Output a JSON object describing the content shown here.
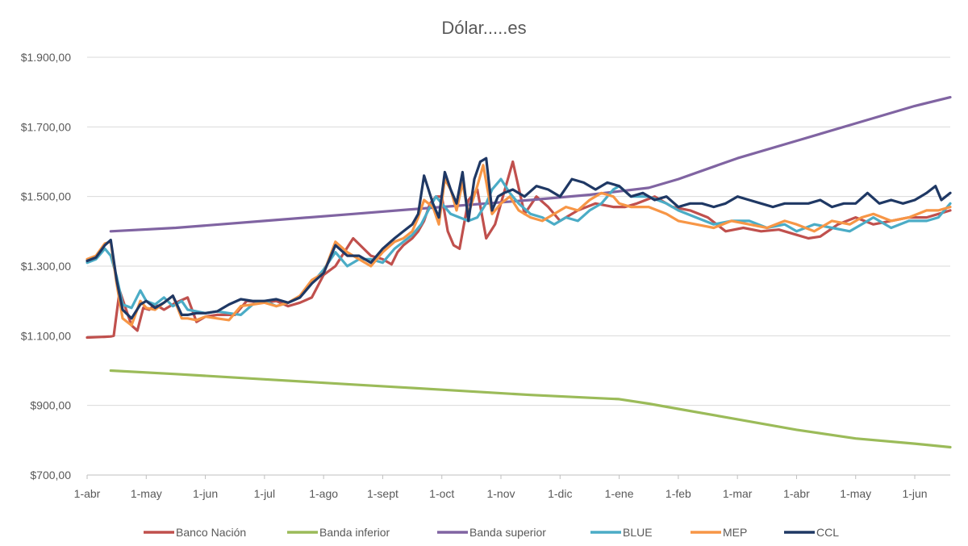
{
  "chart_data": {
    "type": "line",
    "title": "Dólar.....es",
    "xlabel": "",
    "ylabel": "",
    "x_ticks": [
      "1-abr",
      "1-may",
      "1-jun",
      "1-jul",
      "1-ago",
      "1-sept",
      "1-oct",
      "1-nov",
      "1-dic",
      "1-ene",
      "1-feb",
      "1-mar",
      "1-abr",
      "1-may",
      "1-jun"
    ],
    "x_range": [
      0,
      14.6
    ],
    "y_ticks": [
      "$700,00",
      "$900,00",
      "$1.100,00",
      "$1.300,00",
      "$1.500,00",
      "$1.700,00",
      "$1.900,00"
    ],
    "y_tick_values": [
      700,
      900,
      1100,
      1300,
      1500,
      1700,
      1900
    ],
    "ylim": [
      700,
      1900
    ],
    "grid": "horizontal",
    "legend_position": "bottom",
    "series": [
      {
        "name": "Banco Nación",
        "color": "#C0504D",
        "x": [
          0,
          0.3,
          0.4,
          0.45,
          0.55,
          0.65,
          0.75,
          0.85,
          0.95,
          1.05,
          1.15,
          1.3,
          1.5,
          1.7,
          1.85,
          2.0,
          2.2,
          2.5,
          2.7,
          3.0,
          3.2,
          3.4,
          3.6,
          3.8,
          4.0,
          4.2,
          4.5,
          4.8,
          5.0,
          5.15,
          5.25,
          5.35,
          5.5,
          5.6,
          5.7,
          5.8,
          5.9,
          6.0,
          6.1,
          6.2,
          6.3,
          6.45,
          6.6,
          6.75,
          6.9,
          7.0,
          7.2,
          7.4,
          7.6,
          7.8,
          8.0,
          8.3,
          8.6,
          8.9,
          9.1,
          9.3,
          9.6,
          9.9,
          10.2,
          10.5,
          10.8,
          11.1,
          11.4,
          11.7,
          12.0,
          12.2,
          12.4,
          12.7,
          13.0,
          13.3,
          13.6,
          13.9,
          14.2,
          14.4,
          14.6
        ],
        "y": [
          1095,
          1097,
          1098,
          1100,
          1230,
          1180,
          1130,
          1115,
          1180,
          1175,
          1190,
          1175,
          1195,
          1210,
          1140,
          1155,
          1160,
          1160,
          1200,
          1195,
          1200,
          1185,
          1195,
          1210,
          1275,
          1300,
          1380,
          1330,
          1320,
          1305,
          1340,
          1360,
          1380,
          1400,
          1430,
          1480,
          1500,
          1500,
          1400,
          1360,
          1350,
          1490,
          1520,
          1380,
          1420,
          1480,
          1600,
          1450,
          1500,
          1470,
          1430,
          1460,
          1480,
          1470,
          1470,
          1480,
          1500,
          1470,
          1460,
          1440,
          1400,
          1410,
          1400,
          1405,
          1390,
          1380,
          1385,
          1420,
          1440,
          1420,
          1430,
          1440,
          1440,
          1450,
          1460
        ]
      },
      {
        "name": "Banda inferior",
        "color": "#9BBB59",
        "x": [
          0.4,
          1.5,
          3.0,
          4.5,
          6.0,
          7.5,
          8.5,
          9.0,
          9.5,
          10.0,
          11.0,
          12.0,
          13.0,
          14.0,
          14.6
        ],
        "y": [
          1000,
          990,
          975,
          960,
          945,
          930,
          922,
          918,
          905,
          890,
          860,
          830,
          805,
          790,
          780
        ]
      },
      {
        "name": "Banda superior",
        "color": "#8064A2",
        "x": [
          0.4,
          1.5,
          3.0,
          4.5,
          6.0,
          7.5,
          8.5,
          9.0,
          9.5,
          10.0,
          11.0,
          12.0,
          13.0,
          14.0,
          14.6
        ],
        "y": [
          1400,
          1410,
          1430,
          1450,
          1470,
          1490,
          1505,
          1515,
          1525,
          1550,
          1610,
          1660,
          1710,
          1760,
          1785
        ]
      },
      {
        "name": "BLUE",
        "color": "#4BACC6",
        "x": [
          0,
          0.15,
          0.3,
          0.4,
          0.5,
          0.6,
          0.75,
          0.9,
          1.0,
          1.15,
          1.3,
          1.45,
          1.6,
          1.7,
          1.85,
          2.0,
          2.2,
          2.4,
          2.6,
          2.8,
          3.0,
          3.2,
          3.4,
          3.6,
          3.8,
          4.0,
          4.2,
          4.4,
          4.6,
          4.8,
          5.0,
          5.2,
          5.35,
          5.5,
          5.65,
          5.8,
          5.9,
          6.0,
          6.15,
          6.3,
          6.45,
          6.6,
          6.75,
          6.85,
          7.0,
          7.15,
          7.3,
          7.5,
          7.7,
          7.9,
          8.1,
          8.3,
          8.5,
          8.7,
          8.9,
          9.0,
          9.2,
          9.5,
          9.8,
          10.0,
          10.3,
          10.6,
          10.9,
          11.2,
          11.5,
          11.8,
          12.0,
          12.3,
          12.6,
          12.9,
          13.1,
          13.3,
          13.6,
          13.9,
          14.2,
          14.4,
          14.6
        ],
        "y": [
          1310,
          1320,
          1350,
          1330,
          1270,
          1190,
          1180,
          1230,
          1200,
          1190,
          1210,
          1185,
          1200,
          1175,
          1170,
          1165,
          1170,
          1165,
          1160,
          1190,
          1200,
          1185,
          1195,
          1210,
          1250,
          1290,
          1340,
          1300,
          1320,
          1320,
          1310,
          1350,
          1370,
          1390,
          1420,
          1470,
          1500,
          1480,
          1450,
          1440,
          1430,
          1440,
          1480,
          1520,
          1550,
          1510,
          1480,
          1450,
          1440,
          1420,
          1440,
          1430,
          1460,
          1480,
          1520,
          1530,
          1500,
          1500,
          1480,
          1460,
          1440,
          1420,
          1430,
          1430,
          1410,
          1420,
          1400,
          1420,
          1410,
          1400,
          1420,
          1440,
          1410,
          1430,
          1430,
          1440,
          1480
        ]
      },
      {
        "name": "MEP",
        "color": "#F79646",
        "x": [
          0,
          0.15,
          0.3,
          0.4,
          0.5,
          0.6,
          0.75,
          0.9,
          1.0,
          1.15,
          1.3,
          1.45,
          1.6,
          1.7,
          1.85,
          2.0,
          2.2,
          2.4,
          2.6,
          2.8,
          3.0,
          3.2,
          3.4,
          3.6,
          3.8,
          4.0,
          4.2,
          4.4,
          4.6,
          4.8,
          5.0,
          5.2,
          5.35,
          5.5,
          5.6,
          5.7,
          5.85,
          5.95,
          6.05,
          6.15,
          6.25,
          6.35,
          6.45,
          6.6,
          6.7,
          6.85,
          7.0,
          7.15,
          7.3,
          7.5,
          7.7,
          7.9,
          8.1,
          8.3,
          8.5,
          8.7,
          8.9,
          9.0,
          9.2,
          9.5,
          9.8,
          10.0,
          10.3,
          10.6,
          10.9,
          11.2,
          11.5,
          11.8,
          12.0,
          12.3,
          12.6,
          12.9,
          13.1,
          13.3,
          13.6,
          13.9,
          14.2,
          14.4,
          14.6
        ],
        "y": [
          1320,
          1330,
          1365,
          1370,
          1250,
          1150,
          1130,
          1200,
          1180,
          1175,
          1195,
          1215,
          1150,
          1150,
          1145,
          1155,
          1150,
          1145,
          1185,
          1190,
          1195,
          1185,
          1195,
          1215,
          1260,
          1280,
          1370,
          1340,
          1320,
          1300,
          1340,
          1370,
          1380,
          1400,
          1440,
          1490,
          1470,
          1420,
          1550,
          1520,
          1460,
          1540,
          1450,
          1530,
          1590,
          1450,
          1480,
          1500,
          1460,
          1440,
          1430,
          1450,
          1470,
          1460,
          1490,
          1510,
          1500,
          1480,
          1470,
          1470,
          1450,
          1430,
          1420,
          1410,
          1430,
          1420,
          1410,
          1430,
          1420,
          1400,
          1430,
          1420,
          1440,
          1450,
          1430,
          1440,
          1460,
          1460,
          1470
        ]
      },
      {
        "name": "CCL",
        "color": "#1F3864",
        "x": [
          0,
          0.15,
          0.3,
          0.4,
          0.5,
          0.6,
          0.75,
          0.9,
          1.0,
          1.15,
          1.3,
          1.45,
          1.6,
          1.7,
          1.85,
          2.0,
          2.2,
          2.4,
          2.6,
          2.8,
          3.0,
          3.2,
          3.4,
          3.6,
          3.8,
          4.0,
          4.2,
          4.4,
          4.6,
          4.8,
          5.0,
          5.2,
          5.35,
          5.5,
          5.6,
          5.7,
          5.85,
          5.95,
          6.05,
          6.15,
          6.25,
          6.35,
          6.45,
          6.55,
          6.65,
          6.75,
          6.85,
          6.95,
          7.05,
          7.2,
          7.4,
          7.6,
          7.8,
          8.0,
          8.2,
          8.4,
          8.6,
          8.8,
          9.0,
          9.2,
          9.4,
          9.6,
          9.8,
          10.0,
          10.2,
          10.4,
          10.6,
          10.8,
          11.0,
          11.2,
          11.4,
          11.6,
          11.8,
          12.0,
          12.2,
          12.4,
          12.6,
          12.8,
          13.0,
          13.2,
          13.4,
          13.6,
          13.8,
          14.0,
          14.2,
          14.35,
          14.45,
          14.6
        ],
        "y": [
          1315,
          1325,
          1360,
          1375,
          1260,
          1175,
          1150,
          1190,
          1200,
          1180,
          1195,
          1215,
          1160,
          1160,
          1165,
          1165,
          1170,
          1190,
          1205,
          1200,
          1200,
          1205,
          1195,
          1210,
          1250,
          1280,
          1360,
          1330,
          1330,
          1310,
          1350,
          1380,
          1400,
          1420,
          1450,
          1560,
          1480,
          1440,
          1570,
          1520,
          1480,
          1570,
          1430,
          1550,
          1600,
          1610,
          1460,
          1500,
          1510,
          1520,
          1500,
          1530,
          1520,
          1500,
          1550,
          1540,
          1520,
          1540,
          1530,
          1500,
          1510,
          1490,
          1500,
          1470,
          1480,
          1480,
          1470,
          1480,
          1500,
          1490,
          1480,
          1470,
          1480,
          1480,
          1480,
          1490,
          1470,
          1480,
          1480,
          1510,
          1480,
          1490,
          1480,
          1490,
          1510,
          1530,
          1490,
          1510
        ]
      }
    ]
  }
}
